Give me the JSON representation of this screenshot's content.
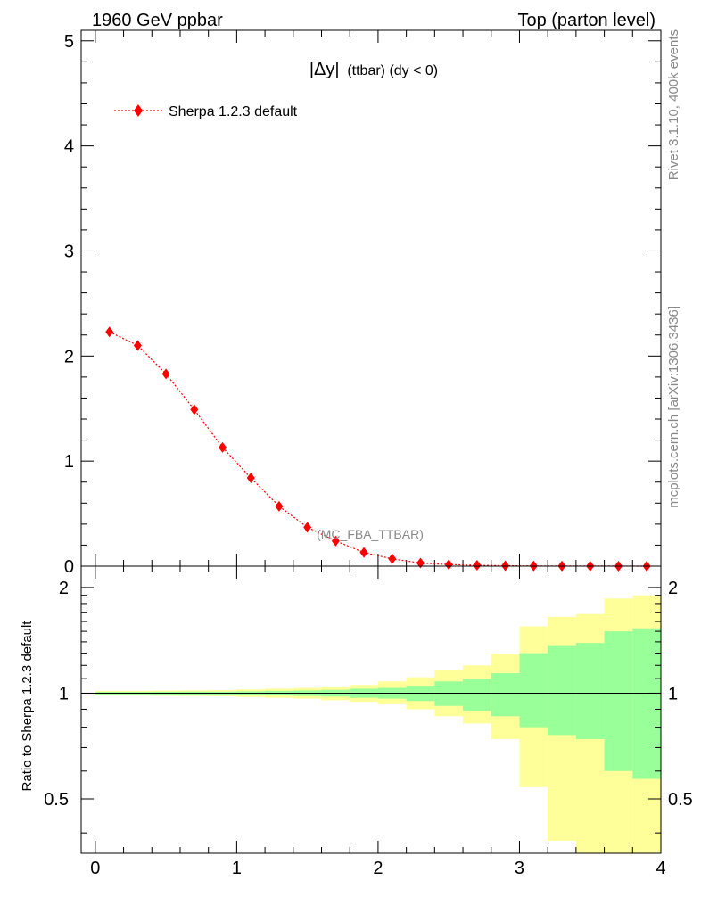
{
  "header": {
    "left": "1960 GeV ppbar",
    "right": "Top (parton level)"
  },
  "side_labels": {
    "rivet": "Rivet 3.1.10,  400k events",
    "mcplots": "mcplots.cern.ch [arXiv:1306.3436]"
  },
  "plot_title": {
    "main": "|Δy|",
    "sub": "(ttbar) (dy < 0)"
  },
  "analysis_label": "(MC_FBA_TTBAR)",
  "legend": {
    "label": "Sherpa 1.2.3 default"
  },
  "ratio_ylabel": "Ratio to Sherpa 1.2.3 default",
  "colors": {
    "series": "#ff0000",
    "band_inner": "#99ff99",
    "band_outer": "#ffff99",
    "gray_text": "#888888"
  },
  "chart_data": [
    {
      "type": "line",
      "title": "|Δy| (ttbar) (dy < 0)",
      "xlim": [
        -0.1,
        4.0
      ],
      "ylim": [
        0,
        5.1
      ],
      "yticks": [
        0,
        1,
        2,
        3,
        4,
        5
      ],
      "xticks": [
        0,
        1,
        2,
        3,
        4
      ],
      "legend_position": "top-left",
      "series": [
        {
          "name": "Sherpa 1.2.3 default",
          "marker": "diamond",
          "style": "dotted",
          "x": [
            0.1,
            0.3,
            0.5,
            0.7,
            0.9,
            1.1,
            1.3,
            1.5,
            1.7,
            1.9,
            2.1,
            2.3,
            2.5,
            2.7,
            2.9,
            3.1,
            3.3,
            3.5,
            3.7,
            3.9
          ],
          "y": [
            2.23,
            2.1,
            1.83,
            1.49,
            1.13,
            0.84,
            0.57,
            0.37,
            0.24,
            0.13,
            0.07,
            0.03,
            0.015,
            0.008,
            0.004,
            0.002,
            0.001,
            0.001,
            0.0005,
            0.0003
          ]
        }
      ]
    },
    {
      "type": "area",
      "ylabel": "Ratio to Sherpa 1.2.3 default",
      "xlim": [
        -0.1,
        4.0
      ],
      "ylim": [
        0.35,
        2.3
      ],
      "yticks": [
        0.5,
        1,
        2
      ],
      "xticks": [
        0,
        1,
        2,
        3,
        4
      ],
      "reference_line": 1,
      "bins": [
        0.0,
        0.2,
        0.4,
        0.6,
        0.8,
        1.0,
        1.2,
        1.4,
        1.6,
        1.8,
        2.0,
        2.2,
        2.4,
        2.6,
        2.8,
        3.0,
        3.2,
        3.4,
        3.6,
        3.8,
        4.0
      ],
      "series": [
        {
          "band": "outer",
          "low": [
            0.985,
            0.985,
            0.983,
            0.982,
            0.98,
            0.975,
            0.97,
            0.965,
            0.955,
            0.945,
            0.93,
            0.9,
            0.86,
            0.82,
            0.74,
            0.54,
            0.38,
            0.33,
            0.33,
            0.33
          ],
          "high": [
            1.015,
            1.015,
            1.017,
            1.018,
            1.02,
            1.025,
            1.03,
            1.035,
            1.045,
            1.055,
            1.08,
            1.11,
            1.16,
            1.2,
            1.29,
            1.55,
            1.65,
            1.68,
            1.86,
            1.9
          ]
        },
        {
          "band": "inner",
          "low": [
            0.992,
            0.992,
            0.991,
            0.99,
            0.99,
            0.988,
            0.985,
            0.982,
            0.978,
            0.97,
            0.965,
            0.95,
            0.92,
            0.89,
            0.86,
            0.8,
            0.76,
            0.74,
            0.6,
            0.57
          ],
          "high": [
            1.008,
            1.008,
            1.009,
            1.01,
            1.01,
            1.012,
            1.015,
            1.018,
            1.022,
            1.03,
            1.035,
            1.05,
            1.08,
            1.1,
            1.14,
            1.3,
            1.37,
            1.39,
            1.5,
            1.53
          ]
        }
      ]
    }
  ]
}
